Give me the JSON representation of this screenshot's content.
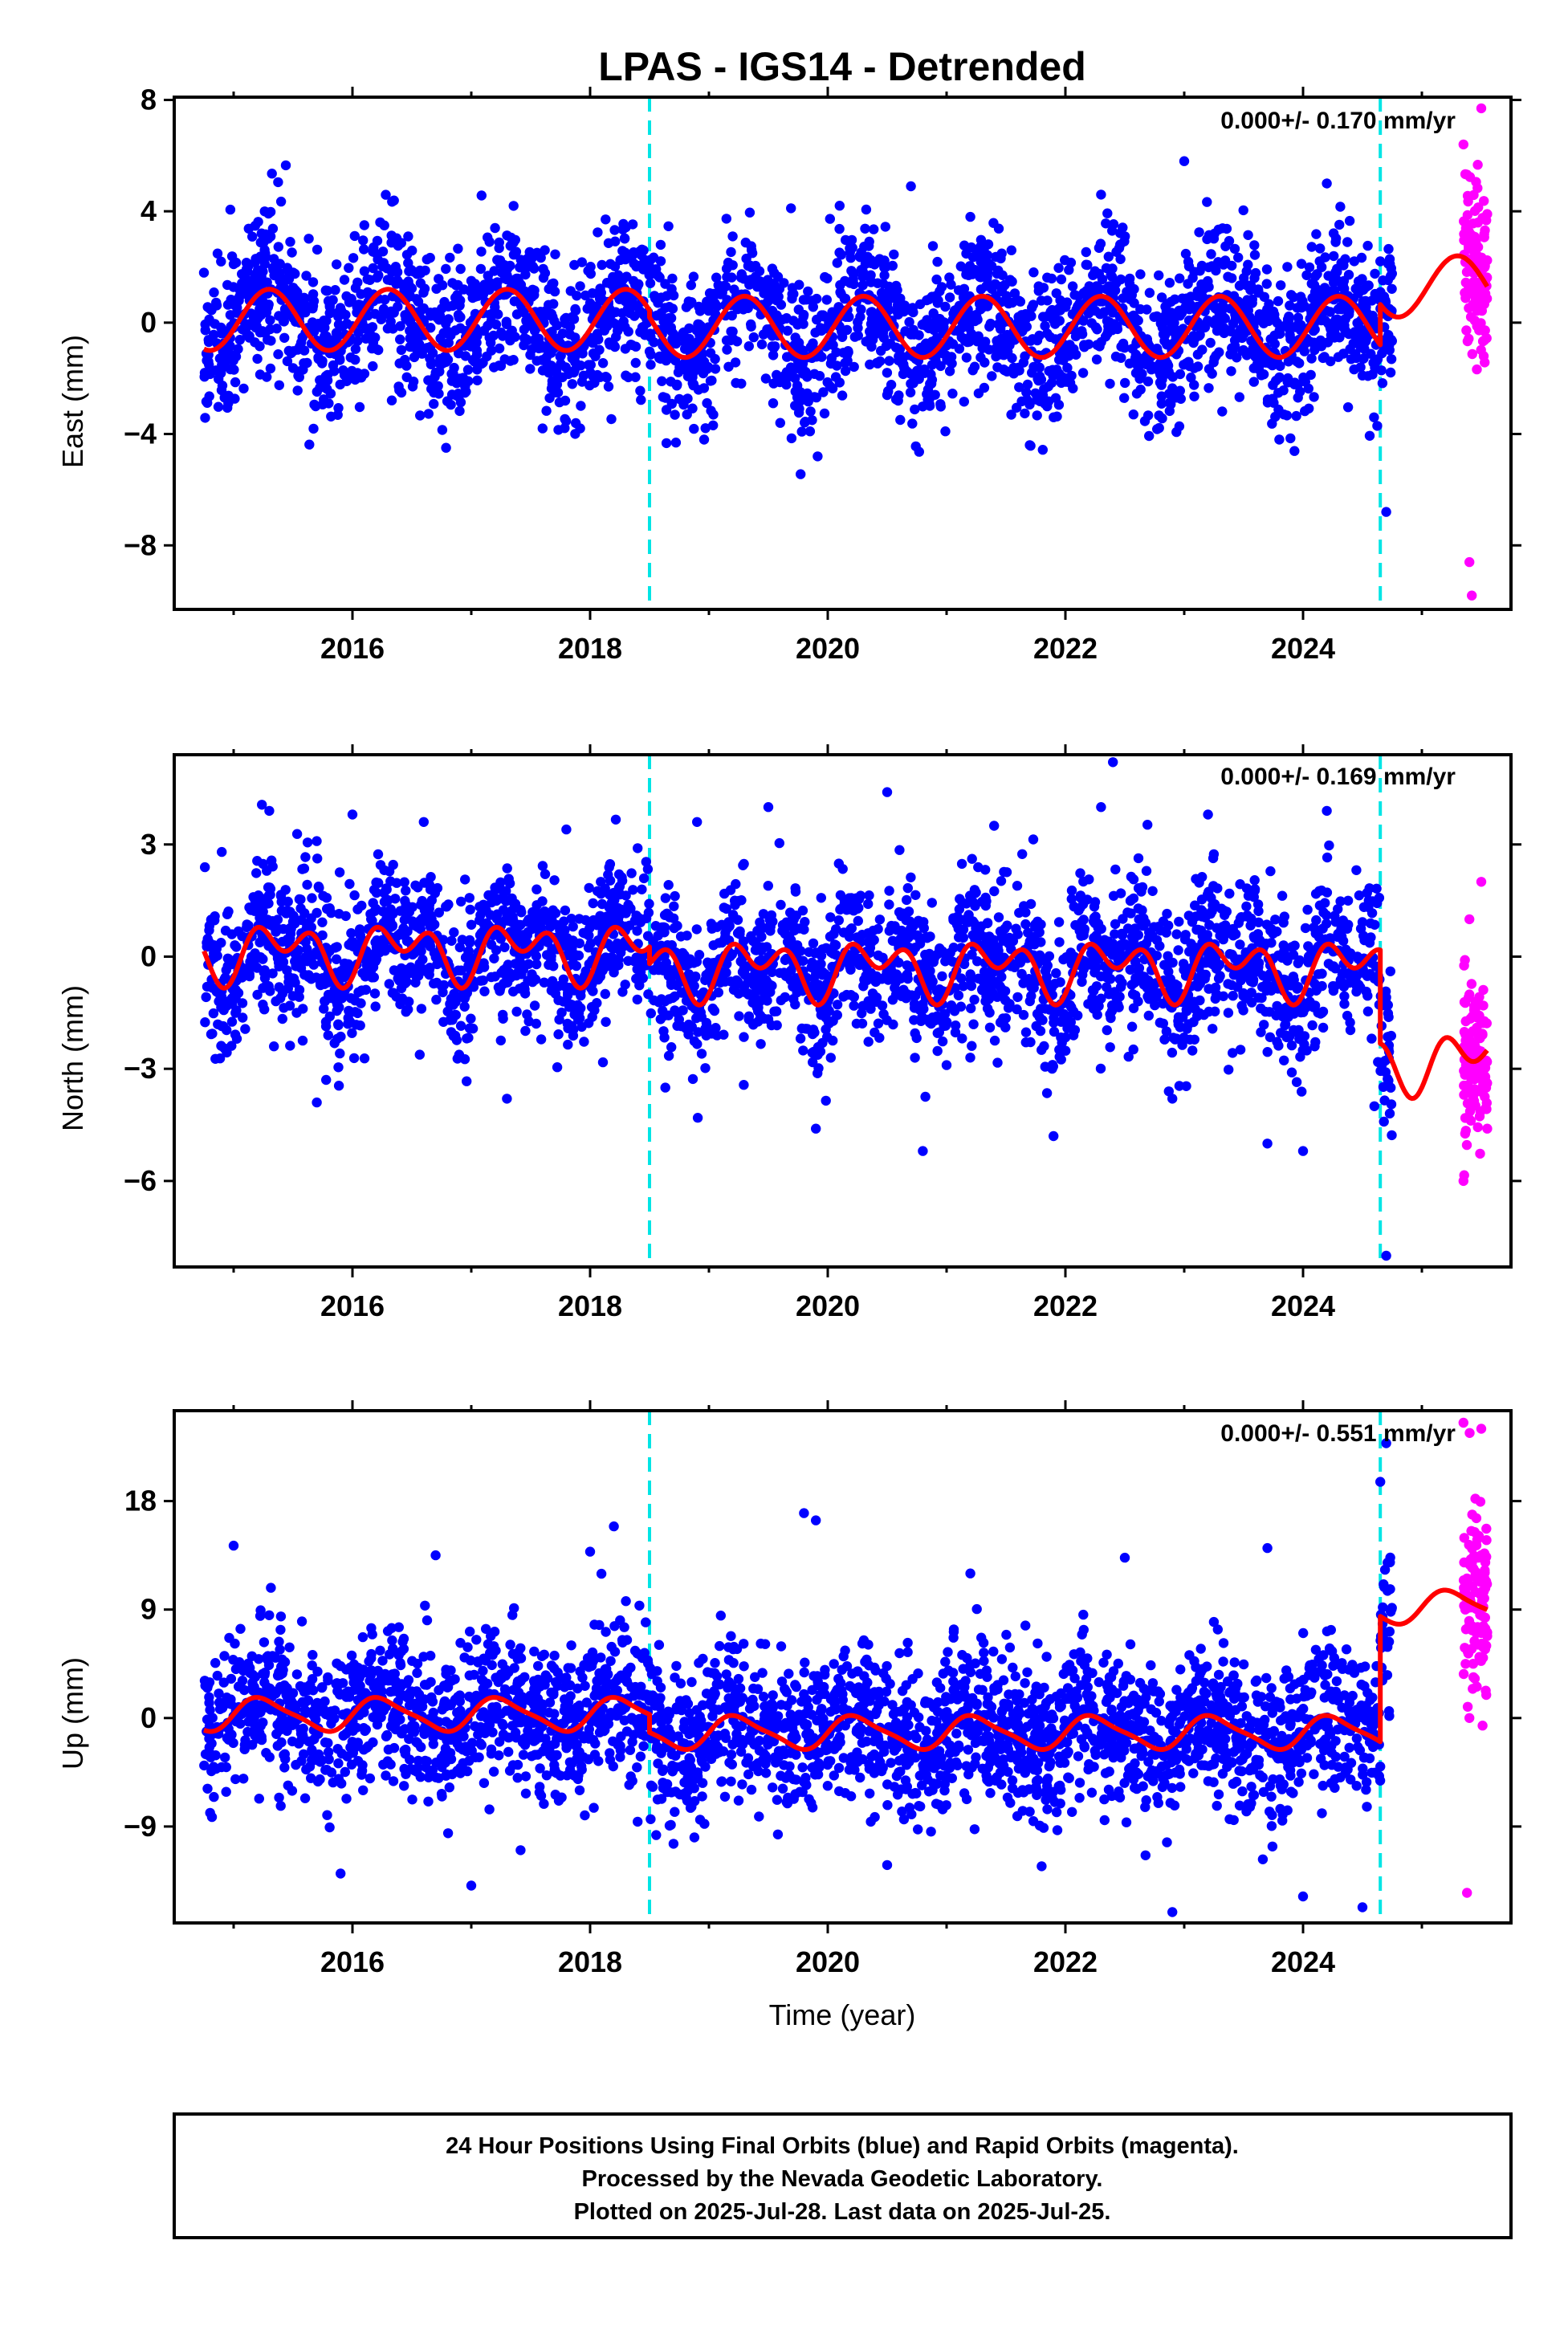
{
  "title": "LPAS - IGS14 - Detrended",
  "xlabel": "Time (year)",
  "footer": {
    "line1": "24 Hour Positions Using Final Orbits (blue) and Rapid Orbits (magenta).",
    "line2": "Processed by the Nevada Geodetic Laboratory.",
    "line3": "Plotted on 2025-Jul-28. Last data on 2025-Jul-25."
  },
  "colors": {
    "final": "#0000ff",
    "rapid": "#ff00ff",
    "model": "#ff0000",
    "offset_line": "#00e5e5",
    "frame": "#000000"
  },
  "chart_data": [
    {
      "type": "scatter",
      "ylabel": "East (mm)",
      "rate": "0.000+/- 0.170 mm/yr",
      "xlim": [
        2014.5,
        2025.75
      ],
      "ylim": [
        -10.3,
        8.1
      ],
      "xticks": [
        2016,
        2018,
        2020,
        2022,
        2024
      ],
      "yticks": [
        -8,
        -4,
        0,
        4,
        8
      ],
      "offsets": [
        2018.5,
        2024.65
      ],
      "final_range": [
        2014.75,
        2024.75
      ],
      "rapid_range": [
        2025.35,
        2025.55
      ],
      "model_segments": [
        {
          "x0": 2014.75,
          "x1": 2018.5,
          "base": 0.1,
          "a1": 1.1,
          "p1": 0.05,
          "a2": 0.0,
          "p2": 0.0
        },
        {
          "x0": 2018.5,
          "x1": 2024.65,
          "base": -0.15,
          "a1": 1.1,
          "p1": 0.05,
          "a2": 0.0,
          "p2": 0.0
        },
        {
          "x0": 2024.65,
          "x1": 2025.55,
          "base": 1.3,
          "a1": 1.1,
          "p1": 0.05,
          "a2": 0.0,
          "p2": 0.0
        }
      ],
      "series": [
        {
          "name": "Final Orbits",
          "values": [
            [
              2014.8,
              0.5
            ],
            [
              2015.0,
              2.1
            ],
            [
              2015.2,
              -1.3
            ],
            [
              2015.5,
              1.8
            ],
            [
              2015.8,
              -2.9
            ],
            [
              2016.1,
              3.5
            ],
            [
              2016.4,
              -0.6
            ],
            [
              2016.7,
              -2.4
            ],
            [
              2017.0,
              1.5
            ],
            [
              2017.2,
              3.4
            ],
            [
              2017.6,
              -3.8
            ],
            [
              2018.0,
              0.7
            ],
            [
              2018.3,
              -1.9
            ],
            [
              2018.7,
              -0.4
            ],
            [
              2019.2,
              3.1
            ],
            [
              2019.6,
              -3.6
            ],
            [
              2020.1,
              4.2
            ],
            [
              2020.5,
              -2.6
            ],
            [
              2020.7,
              4.9
            ],
            [
              2021.2,
              3.8
            ],
            [
              2021.7,
              -4.4
            ],
            [
              2022.3,
              4.6
            ],
            [
              2022.8,
              -1.8
            ],
            [
              2023.0,
              5.8
            ],
            [
              2023.4,
              1.6
            ],
            [
              2023.8,
              -4.2
            ],
            [
              2024.2,
              5.0
            ],
            [
              2024.5,
              -1.9
            ],
            [
              2024.7,
              -6.8
            ]
          ]
        },
        {
          "name": "Rapid Orbits",
          "values": [
            [
              2025.35,
              6.4
            ],
            [
              2025.4,
              -8.6
            ],
            [
              2025.42,
              -9.8
            ],
            [
              2025.45,
              2.1
            ],
            [
              2025.5,
              7.7
            ],
            [
              2025.52,
              -1.2
            ],
            [
              2025.55,
              3.9
            ]
          ]
        }
      ]
    },
    {
      "type": "scatter",
      "ylabel": "North (mm)",
      "rate": "0.000+/- 0.169 mm/yr",
      "xlim": [
        2014.5,
        2025.75
      ],
      "ylim": [
        -8.3,
        5.4
      ],
      "xticks": [
        2016,
        2018,
        2020,
        2022,
        2024
      ],
      "yticks": [
        -6,
        -3,
        0,
        3
      ],
      "offsets": [
        2018.5,
        2024.65
      ],
      "final_range": [
        2014.75,
        2024.75
      ],
      "rapid_range": [
        2025.35,
        2025.55
      ],
      "model_segments": [
        {
          "x0": 2014.75,
          "x1": 2018.5,
          "base": 0.15,
          "a1": 0.5,
          "p1": 0.15,
          "a2": 0.5,
          "p2": 0.05
        },
        {
          "x0": 2018.5,
          "x1": 2024.65,
          "base": -0.3,
          "a1": 0.5,
          "p1": 0.15,
          "a2": 0.5,
          "p2": 0.05
        },
        {
          "x0": 2024.65,
          "x1": 2025.55,
          "base": -2.8,
          "a1": 0.5,
          "p1": 0.15,
          "a2": 0.5,
          "p2": 0.05
        }
      ],
      "series": [
        {
          "name": "Final Orbits",
          "values": [
            [
              2014.9,
              2.8
            ],
            [
              2015.3,
              3.9
            ],
            [
              2015.7,
              -3.9
            ],
            [
              2016.0,
              3.8
            ],
            [
              2016.6,
              3.6
            ],
            [
              2017.3,
              -3.8
            ],
            [
              2017.8,
              3.4
            ],
            [
              2018.4,
              2.9
            ],
            [
              2018.9,
              3.6
            ],
            [
              2019.5,
              4.0
            ],
            [
              2019.9,
              -4.6
            ],
            [
              2020.5,
              4.4
            ],
            [
              2020.8,
              -5.2
            ],
            [
              2021.4,
              3.5
            ],
            [
              2021.9,
              -4.8
            ],
            [
              2022.3,
              4.0
            ],
            [
              2022.4,
              5.2
            ],
            [
              2022.9,
              -3.8
            ],
            [
              2023.2,
              3.8
            ],
            [
              2023.7,
              -5.0
            ],
            [
              2024.0,
              -5.2
            ],
            [
              2024.2,
              3.9
            ],
            [
              2024.6,
              -4.0
            ],
            [
              2024.7,
              -8.0
            ]
          ]
        },
        {
          "name": "Rapid Orbits",
          "values": [
            [
              2025.35,
              -6.0
            ],
            [
              2025.4,
              1.0
            ],
            [
              2025.45,
              -1.2
            ],
            [
              2025.5,
              2.0
            ],
            [
              2025.55,
              -4.6
            ]
          ]
        }
      ]
    },
    {
      "type": "scatter",
      "ylabel": "Up (mm)",
      "rate": "0.000+/- 0.551 mm/yr",
      "xlim": [
        2014.5,
        2025.75
      ],
      "ylim": [
        -17.0,
        25.5
      ],
      "xticks": [
        2016,
        2018,
        2020,
        2022,
        2024
      ],
      "yticks": [
        -9,
        0,
        9,
        18
      ],
      "offsets": [
        2018.5,
        2024.65
      ],
      "final_range": [
        2014.75,
        2024.75
      ],
      "rapid_range": [
        2025.35,
        2025.55
      ],
      "model_segments": [
        {
          "x0": 2014.75,
          "x1": 2018.5,
          "base": 0.3,
          "a1": 1.3,
          "p1": 0.0,
          "a2": 0.3,
          "p2": 0.0
        },
        {
          "x0": 2018.5,
          "x1": 2024.65,
          "base": -1.2,
          "a1": 1.3,
          "p1": 0.0,
          "a2": 0.3,
          "p2": 0.0
        },
        {
          "x0": 2024.65,
          "x1": 2025.55,
          "base": 9.2,
          "a1": 1.3,
          "p1": 0.0,
          "a2": 0.3,
          "p2": 0.0
        }
      ],
      "series": [
        {
          "name": "Final Orbits",
          "values": [
            [
              2015.0,
              14.3
            ],
            [
              2015.9,
              -12.9
            ],
            [
              2016.7,
              13.5
            ],
            [
              2017.0,
              -13.9
            ],
            [
              2018.0,
              13.8
            ],
            [
              2018.2,
              15.9
            ],
            [
              2018.4,
              -8.6
            ],
            [
              2019.1,
              8.5
            ],
            [
              2019.8,
              17.0
            ],
            [
              2019.9,
              16.4
            ],
            [
              2020.5,
              -12.2
            ],
            [
              2021.2,
              12.0
            ],
            [
              2021.8,
              -12.3
            ],
            [
              2022.5,
              13.3
            ],
            [
              2022.9,
              -16.1
            ],
            [
              2023.7,
              14.1
            ],
            [
              2024.0,
              -14.8
            ],
            [
              2024.5,
              -15.7
            ],
            [
              2024.65,
              19.6
            ],
            [
              2024.7,
              22.8
            ]
          ]
        },
        {
          "name": "Rapid Orbits",
          "values": [
            [
              2025.35,
              24.5
            ],
            [
              2025.38,
              -14.5
            ],
            [
              2025.4,
              0.0
            ],
            [
              2025.45,
              18.2
            ],
            [
              2025.5,
              24.0
            ],
            [
              2025.55,
              6.8
            ]
          ]
        }
      ]
    }
  ]
}
